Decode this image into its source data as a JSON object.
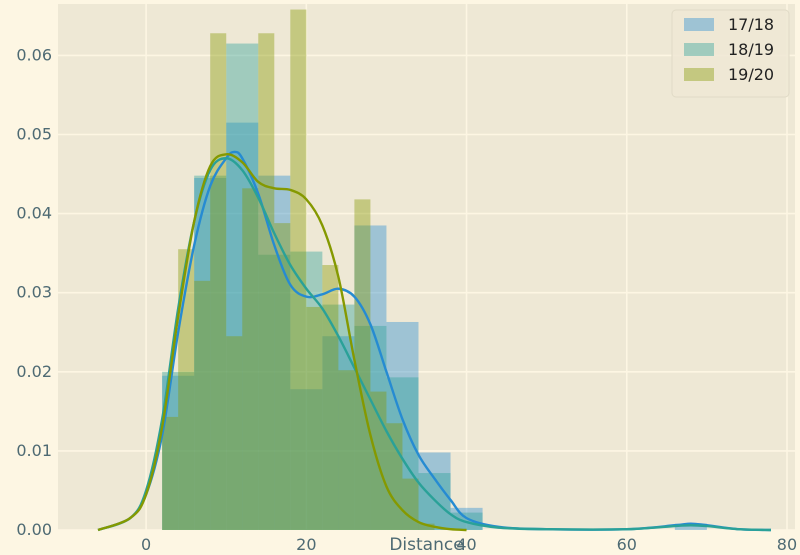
{
  "chart_data": {
    "type": "bar",
    "subtype": "histogram with kernel density estimate",
    "title": "",
    "xlabel": "Distance",
    "ylabel": "",
    "xlim": [
      -11,
      81
    ],
    "ylim": [
      0,
      0.0665
    ],
    "x_ticks": [
      0,
      20,
      40,
      60,
      80
    ],
    "y_ticks": [
      0.0,
      0.01,
      0.02,
      0.03,
      0.04,
      0.05,
      0.06
    ],
    "x_tick_labels": [
      "0",
      "20",
      "40",
      "60",
      "80"
    ],
    "y_tick_labels": [
      "0.00",
      "0.01",
      "0.02",
      "0.03",
      "0.04",
      "0.05",
      "0.06"
    ],
    "grid": true,
    "legend_position": "top-right",
    "colors": {
      "background": "#fdf6e3",
      "plot_area": "#eee8d5",
      "grid": "#fdf6e3",
      "text": "#4e6a73"
    },
    "series": [
      {
        "name": "17/18",
        "color": "#268bd2",
        "hist_edges": [
          2,
          6,
          10,
          14,
          18,
          22,
          26,
          30,
          34,
          38,
          42,
          66,
          70
        ],
        "hist_values": [
          0.0195,
          0.0445,
          0.0515,
          0.0448,
          0.0178,
          0.0245,
          0.0385,
          0.0263,
          0.0098,
          0.0028,
          0,
          0.0008
        ],
        "kde_x": [
          -6,
          -2,
          0,
          2,
          4,
          6,
          8,
          10,
          11,
          12,
          14,
          16,
          18,
          20,
          22,
          24,
          26,
          28,
          30,
          32,
          34,
          36,
          38,
          40,
          44,
          50,
          60,
          66,
          68,
          70,
          74,
          78
        ],
        "kde_y": [
          0,
          0.0015,
          0.0045,
          0.012,
          0.025,
          0.036,
          0.0435,
          0.047,
          0.0478,
          0.047,
          0.0425,
          0.036,
          0.031,
          0.0295,
          0.0298,
          0.0305,
          0.0295,
          0.026,
          0.02,
          0.014,
          0.0095,
          0.0065,
          0.0038,
          0.0015,
          0.0004,
          0.0001,
          0.0001,
          0.0006,
          0.0008,
          0.0006,
          0.0001,
          0
        ]
      },
      {
        "name": "18/19",
        "color": "#2aa198",
        "hist_edges": [
          2,
          6,
          10,
          14,
          18,
          22,
          26,
          30,
          34,
          38,
          42
        ],
        "hist_values": [
          0.02,
          0.0448,
          0.0615,
          0.0348,
          0.0352,
          0.0285,
          0.0258,
          0.0193,
          0.0072,
          0.0022
        ],
        "kde_x": [
          -6,
          -2,
          0,
          2,
          4,
          6,
          8,
          10,
          12,
          14,
          16,
          18,
          20,
          22,
          24,
          26,
          28,
          30,
          32,
          34,
          36,
          38,
          40,
          44,
          50,
          60,
          66,
          68,
          70,
          74,
          78
        ],
        "kde_y": [
          0,
          0.0015,
          0.005,
          0.014,
          0.028,
          0.039,
          0.0455,
          0.047,
          0.0455,
          0.042,
          0.0375,
          0.0335,
          0.0305,
          0.028,
          0.0245,
          0.0205,
          0.0165,
          0.0125,
          0.009,
          0.006,
          0.0038,
          0.002,
          0.001,
          0.0003,
          0.0001,
          0.0001,
          0.0005,
          0.0006,
          0.0005,
          0.0001,
          0
        ]
      },
      {
        "name": "19/20",
        "color": "#859900",
        "hist_edges": [
          2,
          4,
          6,
          8,
          10,
          12,
          14,
          16,
          18,
          20,
          22,
          24,
          26,
          28,
          30,
          32,
          34,
          36
        ],
        "hist_values": [
          0.0143,
          0.0355,
          0.0315,
          0.0628,
          0.0245,
          0.0432,
          0.0628,
          0.0388,
          0.0658,
          0.0282,
          0.0335,
          0.0202,
          0.0418,
          0.0175,
          0.0135,
          0.0065,
          0.0008
        ],
        "kde_x": [
          -6,
          -2,
          0,
          2,
          4,
          6,
          8,
          10,
          12,
          14,
          16,
          18,
          20,
          22,
          24,
          26,
          28,
          30,
          32,
          34,
          36,
          38,
          40
        ],
        "kde_y": [
          0,
          0.0015,
          0.0045,
          0.013,
          0.027,
          0.039,
          0.046,
          0.0475,
          0.0465,
          0.044,
          0.0432,
          0.043,
          0.0418,
          0.0385,
          0.032,
          0.0215,
          0.012,
          0.0055,
          0.0025,
          0.001,
          0.0004,
          0.0001,
          0
        ]
      }
    ]
  }
}
